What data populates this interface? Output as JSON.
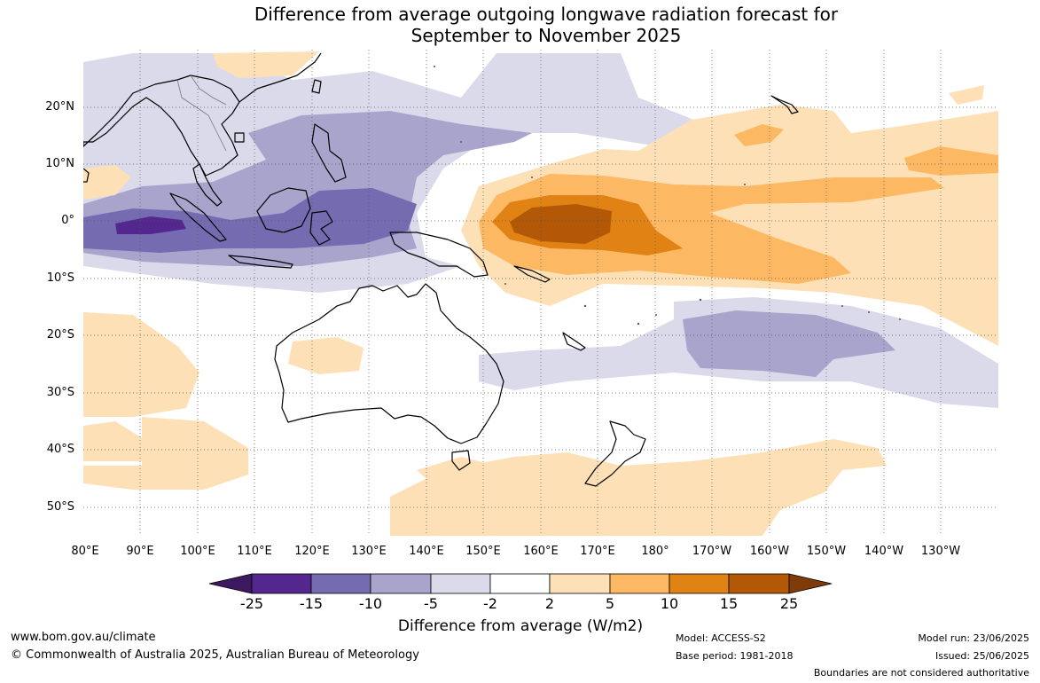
{
  "title": {
    "line1": "Difference from average outgoing longwave radiation forecast for",
    "line2": "September to November 2025"
  },
  "axes": {
    "lat_ticks": [
      "20°N",
      "10°N",
      "0°",
      "10°S",
      "20°S",
      "30°S",
      "40°S",
      "50°S"
    ],
    "lon_ticks": [
      "80°E",
      "90°E",
      "100°E",
      "110°E",
      "120°E",
      "130°E",
      "140°E",
      "150°E",
      "160°E",
      "170°E",
      "180°",
      "170°W",
      "160°W",
      "150°W",
      "140°W",
      "130°W"
    ]
  },
  "colorbar": {
    "labels": [
      "-25",
      "-15",
      "-10",
      "-5",
      "-2",
      "2",
      "5",
      "10",
      "15",
      "25"
    ],
    "colors": [
      "#3d1a60",
      "#54278f",
      "#756bb1",
      "#a8a4cc",
      "#dadaeb",
      "#ffffff",
      "#fee0b6",
      "#fdb863",
      "#e08214",
      "#b35806",
      "#7f3b08"
    ],
    "title": "Difference from average (W/m2)"
  },
  "footer": {
    "website": "www.bom.gov.au/climate",
    "copyright": "© Commonwealth of Australia 2025, Australian Bureau of Meteorology",
    "model": "Model: ACCESS-S2",
    "base_period": "Base period: 1981-2018",
    "model_run": "Model run: 23/06/2025",
    "issued": "Issued: 25/06/2025",
    "disclaimer": "Boundaries are not considered authoritative"
  }
}
